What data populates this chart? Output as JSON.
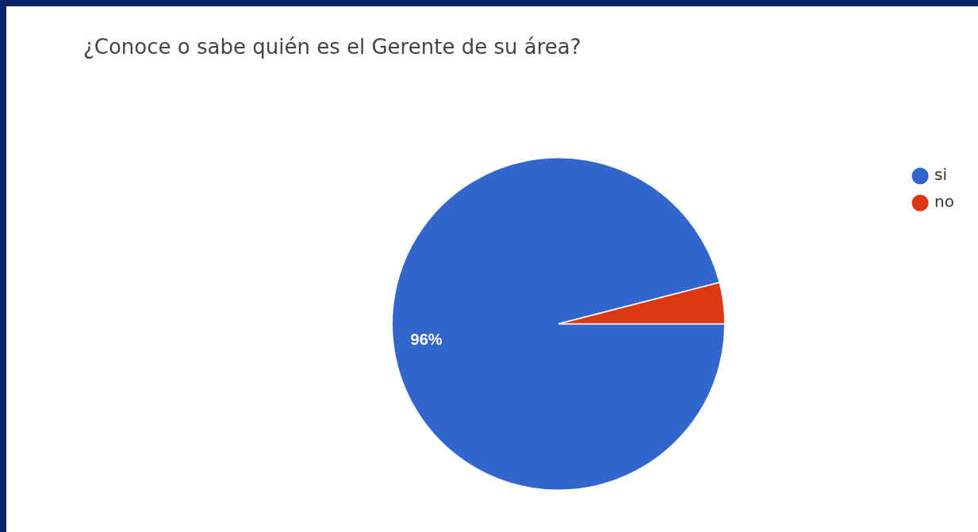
{
  "chart_data": {
    "type": "pie",
    "title": "¿Conoce o sabe quién es el Gerente de su área?",
    "categories": [
      "si",
      "no"
    ],
    "values": [
      96,
      4
    ],
    "colors": [
      "#3366cc",
      "#dc3912"
    ],
    "value_labels": [
      "96%",
      null
    ],
    "legend": "top right"
  }
}
